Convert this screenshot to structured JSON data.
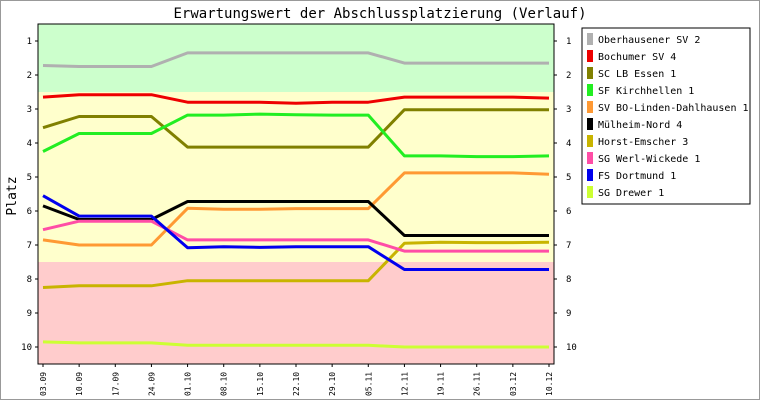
{
  "chart_data": {
    "type": "line",
    "title": "Erwartungswert der Abschlussplatzierung (Verlauf)",
    "ylabel": "Platz",
    "xlabel": "",
    "x": [
      "03.09",
      "10.09",
      "17.09",
      "24.09",
      "01.10",
      "08.10",
      "15.10",
      "22.10",
      "29.10",
      "05.11",
      "12.11",
      "19.11",
      "26.11",
      "03.12",
      "10.12"
    ],
    "yticks": [
      "1",
      "2",
      "3",
      "4",
      "5",
      "6",
      "7",
      "8",
      "9",
      "10"
    ],
    "ylim": [
      0.5,
      10.5
    ],
    "y_inverted": true,
    "grid": false,
    "legend_position": "right",
    "bands": [
      {
        "from": 0.5,
        "to": 2.5,
        "color": "#ccffcc"
      },
      {
        "from": 2.5,
        "to": 7.5,
        "color": "#ffffcc"
      },
      {
        "from": 7.5,
        "to": 10.5,
        "color": "#ffcccc"
      }
    ],
    "series": [
      {
        "name": "Oberhausener SV 2",
        "color": "#b0b0b0",
        "values": [
          1.72,
          1.75,
          1.75,
          1.75,
          1.35,
          1.35,
          1.35,
          1.35,
          1.35,
          1.35,
          1.65,
          1.65,
          1.65,
          1.65,
          1.65
        ]
      },
      {
        "name": "Bochumer SV 4",
        "color": "#ee0000",
        "values": [
          2.65,
          2.58,
          2.58,
          2.58,
          2.8,
          2.8,
          2.8,
          2.83,
          2.8,
          2.8,
          2.65,
          2.65,
          2.65,
          2.65,
          2.68
        ]
      },
      {
        "name": "SC LB Essen 1",
        "color": "#808000",
        "values": [
          3.55,
          3.22,
          3.22,
          3.22,
          4.12,
          4.12,
          4.12,
          4.12,
          4.12,
          4.12,
          3.02,
          3.02,
          3.02,
          3.02,
          3.02
        ]
      },
      {
        "name": "SF Kirchhellen 1",
        "color": "#22ee22",
        "values": [
          4.25,
          3.72,
          3.72,
          3.72,
          3.18,
          3.18,
          3.15,
          3.17,
          3.18,
          3.18,
          4.38,
          4.38,
          4.4,
          4.4,
          4.38
        ]
      },
      {
        "name": "SV BO-Linden-Dahlhausen 1",
        "color": "#ff9933",
        "values": [
          6.85,
          7.0,
          7.0,
          7.0,
          5.92,
          5.95,
          5.95,
          5.93,
          5.93,
          5.93,
          4.88,
          4.88,
          4.88,
          4.88,
          4.92
        ]
      },
      {
        "name": "Mülheim-Nord 4",
        "color": "#000000",
        "values": [
          5.85,
          6.25,
          6.25,
          6.25,
          5.72,
          5.72,
          5.72,
          5.72,
          5.72,
          5.72,
          6.72,
          6.72,
          6.72,
          6.72,
          6.72
        ]
      },
      {
        "name": "Horst-Emscher 3",
        "color": "#c8b400",
        "values": [
          8.25,
          8.2,
          8.2,
          8.2,
          8.05,
          8.05,
          8.05,
          8.05,
          8.05,
          8.05,
          6.95,
          6.92,
          6.93,
          6.93,
          6.92
        ]
      },
      {
        "name": "SG Werl-Wickede 1",
        "color": "#ff4da6",
        "values": [
          6.55,
          6.3,
          6.3,
          6.3,
          6.85,
          6.85,
          6.85,
          6.85,
          6.85,
          6.85,
          7.18,
          7.18,
          7.18,
          7.18,
          7.18
        ]
      },
      {
        "name": "FS Dortmund 1",
        "color": "#0000ee",
        "values": [
          5.55,
          6.15,
          6.15,
          6.15,
          7.08,
          7.05,
          7.07,
          7.05,
          7.05,
          7.05,
          7.72,
          7.72,
          7.72,
          7.72,
          7.72
        ]
      },
      {
        "name": "SG Drewer 1",
        "color": "#ccff33",
        "values": [
          9.85,
          9.88,
          9.88,
          9.88,
          9.95,
          9.95,
          9.95,
          9.95,
          9.95,
          9.95,
          10.0,
          10.0,
          10.0,
          10.0,
          10.0
        ]
      }
    ]
  }
}
